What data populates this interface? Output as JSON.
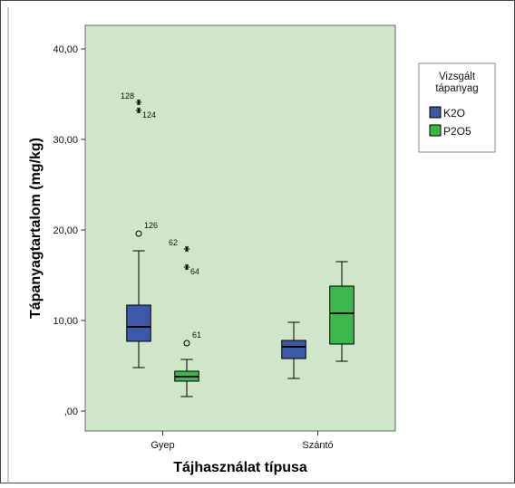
{
  "chart_data": {
    "type": "boxplot",
    "title": "",
    "xlabel": "Tájhasználat típusa",
    "ylabel": "Tápanyagtartalom (mg/kg)",
    "ylim": [
      -2.2,
      42.6
    ],
    "yticks": [
      0,
      10,
      20,
      30,
      40
    ],
    "ytick_labels": [
      ",00",
      "10,00",
      "20,00",
      "30,00",
      "40,00"
    ],
    "categories": [
      "Gyep",
      "Szántó"
    ],
    "legend": {
      "title_lines": [
        "Vizsgált",
        "tápanyag"
      ],
      "placement": "right",
      "entries": [
        {
          "name": "K2O",
          "color": "#3c58a8"
        },
        {
          "name": "P2O5",
          "color": "#3cb84a"
        }
      ]
    },
    "plot_background": "#cfe6c9",
    "series": [
      {
        "name": "K2O",
        "color": "#3c58a8",
        "boxes": [
          {
            "category": "Gyep",
            "whisker_low": 4.8,
            "q1": 7.7,
            "median": 9.3,
            "q3": 11.7,
            "whisker_high": 17.7,
            "outliers": [
              {
                "value": 19.6,
                "label": "126",
                "marker": "circle"
              },
              {
                "value": 34.1,
                "label": "128",
                "marker": "star"
              },
              {
                "value": 33.2,
                "label": "124",
                "marker": "star"
              }
            ]
          },
          {
            "category": "Szántó",
            "whisker_low": 3.6,
            "q1": 5.8,
            "median": 7.1,
            "q3": 7.8,
            "whisker_high": 9.8,
            "outliers": []
          }
        ]
      },
      {
        "name": "P2O5",
        "color": "#3cb84a",
        "boxes": [
          {
            "category": "Gyep",
            "whisker_low": 1.6,
            "q1": 3.3,
            "median": 3.8,
            "q3": 4.4,
            "whisker_high": 5.7,
            "outliers": [
              {
                "value": 7.5,
                "label": "61",
                "marker": "circle"
              },
              {
                "value": 17.9,
                "label": "62",
                "marker": "star"
              },
              {
                "value": 15.9,
                "label": "64",
                "marker": "star"
              }
            ]
          },
          {
            "category": "Szántó",
            "whisker_low": 5.5,
            "q1": 7.4,
            "median": 10.8,
            "q3": 13.8,
            "whisker_high": 16.5,
            "outliers": []
          }
        ]
      }
    ]
  }
}
